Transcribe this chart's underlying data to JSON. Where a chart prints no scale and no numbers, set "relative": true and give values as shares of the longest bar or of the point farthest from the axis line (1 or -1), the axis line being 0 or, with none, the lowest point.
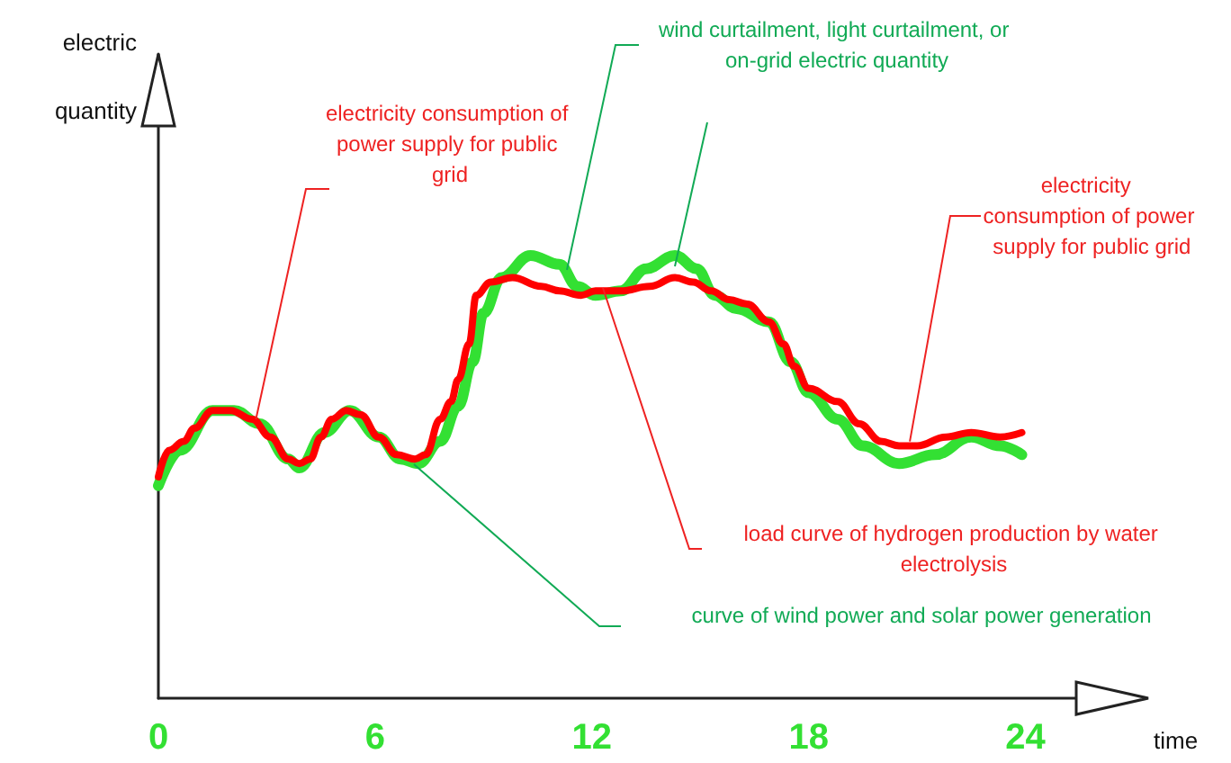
{
  "chart_data": {
    "type": "line",
    "relative": true,
    "xlabel": "time",
    "ylabel": "electric quantity",
    "xlim": [
      0,
      27
    ],
    "xticks": [
      0,
      6,
      12,
      18,
      24
    ],
    "grid": false,
    "marker": "none",
    "line_style": "solid",
    "series": [
      {
        "color": "#33e033",
        "x": [
          0,
          0.6,
          1.5,
          2.1,
          2.8,
          3.6,
          3.9,
          4.6,
          5.3,
          6.1,
          6.7,
          7.2,
          7.8,
          8.3,
          8.7,
          9.0,
          9.5,
          10.3,
          11.1,
          11.6,
          12.1,
          12.8,
          13.5,
          14.3,
          14.9,
          15.4,
          16.0,
          16.9,
          17.5,
          18.0,
          18.8,
          19.5,
          20.5,
          21.5,
          22.5,
          23.3,
          23.9
        ],
        "values": [
          0.48,
          0.56,
          0.65,
          0.65,
          0.62,
          0.54,
          0.52,
          0.6,
          0.65,
          0.59,
          0.54,
          0.53,
          0.58,
          0.66,
          0.76,
          0.87,
          0.95,
          1.0,
          0.98,
          0.93,
          0.91,
          0.92,
          0.97,
          1.0,
          0.97,
          0.91,
          0.88,
          0.85,
          0.76,
          0.69,
          0.63,
          0.57,
          0.53,
          0.55,
          0.59,
          0.57,
          0.55
        ]
      },
      {
        "color": "#ff0000",
        "x": [
          0,
          0.3,
          0.7,
          1.0,
          1.5,
          2.0,
          2.6,
          3.1,
          3.6,
          3.9,
          4.2,
          4.5,
          4.8,
          5.2,
          5.6,
          6.1,
          6.6,
          7.1,
          7.4,
          7.8,
          8.1,
          8.3,
          8.6,
          8.8,
          9.2,
          9.8,
          10.6,
          11.1,
          11.7,
          12.1,
          12.8,
          13.6,
          14.3,
          14.8,
          15.3,
          15.8,
          16.3,
          16.9,
          17.3,
          17.6,
          18.0,
          18.8,
          19.4,
          20.0,
          20.5,
          21.0,
          21.8,
          22.5,
          23.3,
          23.9
        ],
        "values": [
          0.5,
          0.56,
          0.58,
          0.61,
          0.65,
          0.65,
          0.63,
          0.59,
          0.54,
          0.53,
          0.54,
          0.59,
          0.63,
          0.65,
          0.64,
          0.59,
          0.55,
          0.54,
          0.55,
          0.63,
          0.67,
          0.72,
          0.8,
          0.91,
          0.94,
          0.95,
          0.93,
          0.92,
          0.91,
          0.92,
          0.92,
          0.93,
          0.95,
          0.94,
          0.92,
          0.9,
          0.89,
          0.85,
          0.8,
          0.75,
          0.7,
          0.67,
          0.62,
          0.58,
          0.57,
          0.57,
          0.59,
          0.6,
          0.59,
          0.6
        ]
      }
    ],
    "annotations": [
      {
        "text": "electricity consumption of power supply for public grid",
        "x": 2.7,
        "y": 0.63
      },
      "wind curtailment, light curtailment, or on-grid electric quantity",
      {
        "text": "electricity consumption of power supply for public grid",
        "x": 20.8,
        "y": 0.58
      },
      "load curve of hydrogen production by water electrolysis",
      "curve of wind power and solar power generation"
    ]
  }
}
